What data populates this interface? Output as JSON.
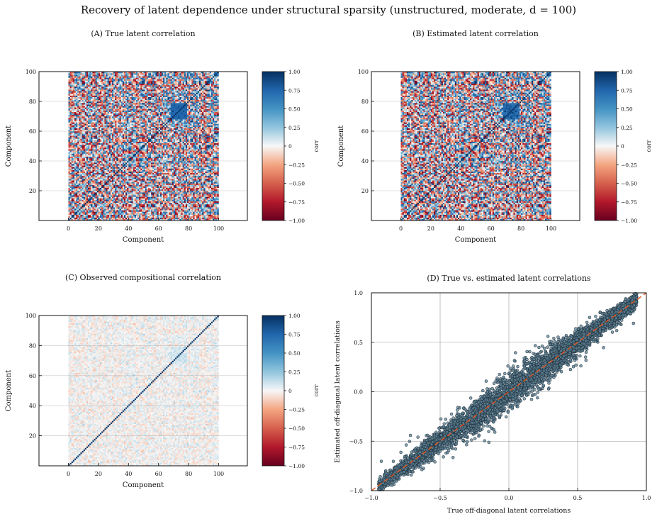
{
  "figure": {
    "title": "Recovery of latent dependence under structural sparsity (unstructured, moderate, d = 100)"
  },
  "chart_data": [
    {
      "id": "A",
      "type": "heatmap",
      "title": "(A) True latent correlation",
      "xlabel": "Component",
      "ylabel": "Component",
      "xticks": [
        "0",
        "20",
        "40",
        "60",
        "80",
        "100"
      ],
      "yticks": [
        "20",
        "40",
        "60",
        "80",
        "100"
      ],
      "x_range": [
        0,
        100
      ],
      "y_range": [
        0,
        100
      ],
      "grid": true,
      "colorbar": {
        "label": "corr",
        "range": [
          -1.0,
          1.0
        ],
        "ticks": [
          "1.00",
          "0.75",
          "0.50",
          "0.25",
          "0",
          "−0.25",
          "−0.50",
          "−0.75",
          "−1.00"
        ],
        "colormap": "RdBu"
      },
      "matrix_size": 100,
      "pattern": "unstructured dense correlations in [-1, 1] with unit diagonal; strong blue block near components 68-78"
    },
    {
      "id": "B",
      "type": "heatmap",
      "title": "(B) Estimated latent correlation",
      "xlabel": "Component",
      "ylabel": "Component",
      "xticks": [
        "0",
        "20",
        "40",
        "60",
        "80",
        "100"
      ],
      "yticks": [
        "20",
        "40",
        "60",
        "80",
        "100"
      ],
      "x_range": [
        0,
        100
      ],
      "y_range": [
        0,
        100
      ],
      "grid": true,
      "colorbar": {
        "label": "corr",
        "range": [
          -1.0,
          1.0
        ],
        "ticks": [
          "1.00",
          "0.75",
          "0.50",
          "0.25",
          "0",
          "−0.25",
          "−0.50",
          "−0.75",
          "−1.00"
        ],
        "colormap": "RdBu"
      },
      "matrix_size": 100,
      "pattern": "close reproduction of panel A with slight noise"
    },
    {
      "id": "C",
      "type": "heatmap",
      "title": "(C) Observed compositional correlation",
      "xlabel": "Component",
      "ylabel": "Component",
      "xticks": [
        "0",
        "20",
        "40",
        "60",
        "80",
        "100"
      ],
      "yticks": [
        "20",
        "40",
        "60",
        "80",
        "100"
      ],
      "x_range": [
        0,
        100
      ],
      "y_range": [
        0,
        100
      ],
      "grid": true,
      "colorbar": {
        "label": "corr",
        "range": [
          -1.0,
          1.0
        ],
        "ticks": [
          "1.00",
          "0.75",
          "0.50",
          "0.25",
          "0",
          "−0.25",
          "−0.50",
          "−0.75",
          "−1.00"
        ],
        "colormap": "RdBu"
      },
      "matrix_size": 100,
      "pattern": "weak correlations near 0 (|r| < 0.2) with unit diagonal"
    },
    {
      "id": "D",
      "type": "scatter",
      "title": "(D) True vs. estimated latent correlations",
      "xlabel": "True off-diagonal latent correlations",
      "ylabel": "Estimated off-diagonal latent correlations",
      "xlim": [
        -1.0,
        1.0
      ],
      "ylim": [
        -1.0,
        1.0
      ],
      "xticks": [
        "−1.0",
        "−0.5",
        "0.0",
        "0.5",
        "1.0"
      ],
      "yticks": [
        "−1.0",
        "−0.5",
        "0.0",
        "0.5",
        "1.0"
      ],
      "grid": true,
      "reference_line": {
        "type": "identity",
        "from": [
          -1.0,
          -1.0
        ],
        "to": [
          1.0,
          1.0
        ],
        "style": "dashed",
        "color": "#e5541b"
      },
      "point_color": "#5e8196",
      "point_edge_color": "#1b2a35",
      "n_points": 4950,
      "point_cloud": "points scattered tightly around y = x for x from -0.95 to 0.93, spread widening near the middle (about ±0.1) and a few outliers up to about ±0.3"
    }
  ]
}
